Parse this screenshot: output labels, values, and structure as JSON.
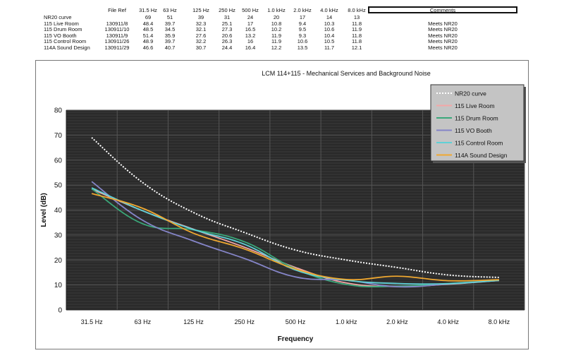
{
  "table": {
    "headers": [
      "File Ref",
      "31.5 Hz",
      "63 Hz",
      "125 Hz",
      "250 Hz",
      "500 Hz",
      "1.0 kHz",
      "2.0 kHz",
      "4.0 kHz",
      "8.0 kHz"
    ],
    "comments_header": "Comments",
    "rows": [
      {
        "name": "NR20 curve",
        "ref": "",
        "values": [
          "69",
          "51",
          "39",
          "31",
          "24",
          "20",
          "17",
          "14",
          "13"
        ],
        "comment": ""
      },
      {
        "name": "115 Live Room",
        "ref": "130911/8",
        "values": [
          "48.4",
          "39.7",
          "32.3",
          "25.1",
          "17",
          "10.8",
          "9.4",
          "10.3",
          "11.8"
        ],
        "comment": "Meets NR20"
      },
      {
        "name": "115 Drum Room",
        "ref": "130911/10",
        "values": [
          "48.5",
          "34.5",
          "32.1",
          "27.3",
          "16.5",
          "10.2",
          "9.5",
          "10.6",
          "11.9"
        ],
        "comment": "Meets NR20"
      },
      {
        "name": "115 VO Booth",
        "ref": "130911/9",
        "values": [
          "51.4",
          "35.9",
          "27.6",
          "20.6",
          "13.2",
          "11.9",
          "9.3",
          "10.4",
          "11.8"
        ],
        "comment": "Meets NR20"
      },
      {
        "name": "115 Control Room",
        "ref": "130911/26",
        "values": [
          "48.9",
          "39.7",
          "32.2",
          "26.3",
          "16",
          "11.9",
          "10.6",
          "10.5",
          "11.8"
        ],
        "comment": "Meets NR20"
      },
      {
        "name": "114A Sound Design",
        "ref": "130911/29",
        "values": [
          "46.6",
          "40.7",
          "30.7",
          "24.4",
          "16.4",
          "12.2",
          "13.5",
          "11.7",
          "12.1"
        ],
        "comment": "Meets NR20"
      }
    ]
  },
  "chart_data": {
    "type": "line",
    "title": "LCM 114+115 - Mechanical Services and Background Noise",
    "xlabel": "Frequency",
    "ylabel": "Level (dB)",
    "categories": [
      "31.5 Hz",
      "63 Hz",
      "125 Hz",
      "250 Hz",
      "500 Hz",
      "1.0 kHz",
      "2.0 kHz",
      "4.0 kHz",
      "8.0 kHz"
    ],
    "ylim": [
      0,
      80
    ],
    "yticks": [
      "0",
      "10",
      "20",
      "30",
      "40",
      "50",
      "60",
      "70",
      "80"
    ],
    "grid": true,
    "legend_position": "top-right",
    "plot_background": "#2a2a2a",
    "series": [
      {
        "name": "NR20 curve",
        "values": [
          69,
          51,
          39,
          31,
          24,
          20,
          17,
          14,
          13
        ],
        "color": "#ffffff",
        "dashed": true
      },
      {
        "name": "115 Live Room",
        "values": [
          48.4,
          39.7,
          32.3,
          25.1,
          17,
          10.8,
          9.4,
          10.3,
          11.8
        ],
        "color": "#f4a6a6",
        "dashed": false
      },
      {
        "name": "115 Drum Room",
        "values": [
          48.5,
          34.5,
          32.1,
          27.3,
          16.5,
          10.2,
          9.5,
          10.6,
          11.9
        ],
        "color": "#3aa87a",
        "dashed": false
      },
      {
        "name": "115 VO Booth",
        "values": [
          51.4,
          35.9,
          27.6,
          20.6,
          13.2,
          11.9,
          9.3,
          10.4,
          11.8
        ],
        "color": "#8585c8",
        "dashed": false
      },
      {
        "name": "115 Control Room",
        "values": [
          48.9,
          39.7,
          32.2,
          26.3,
          16,
          11.9,
          10.6,
          10.5,
          11.8
        ],
        "color": "#5fd0d6",
        "dashed": false
      },
      {
        "name": "114A Sound Design",
        "values": [
          46.6,
          40.7,
          30.7,
          24.4,
          16.4,
          12.2,
          13.5,
          11.7,
          12.1
        ],
        "color": "#f0a830",
        "dashed": false
      }
    ]
  }
}
